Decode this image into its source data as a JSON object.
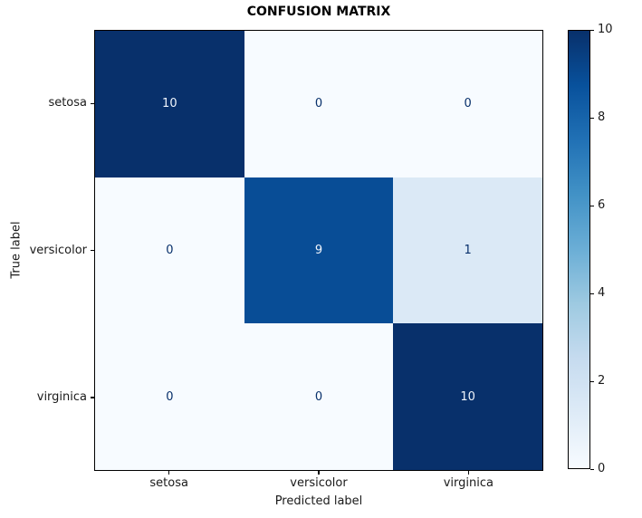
{
  "chart_data": {
    "type": "heatmap",
    "title": "CONFUSION MATRIX",
    "xlabel": "Predicted label",
    "ylabel": "True label",
    "x_categories": [
      "setosa",
      "versicolor",
      "virginica"
    ],
    "y_categories": [
      "setosa",
      "versicolor",
      "virginica"
    ],
    "matrix": [
      [
        10,
        0,
        0
      ],
      [
        0,
        9,
        1
      ],
      [
        0,
        0,
        10
      ]
    ],
    "colormap": "Blues",
    "vmin": 0,
    "vmax": 10,
    "colorbar_ticks": [
      0,
      2,
      4,
      6,
      8,
      10
    ],
    "colorbar_position": "right",
    "grid": false
  },
  "colors": {
    "value_fill": {
      "0": "#f7fbff",
      "1": "#dbe9f6",
      "9": "#084d96",
      "10": "#08306b"
    },
    "value_text": {
      "0": "#08306b",
      "1": "#08306b",
      "9": "#f0f5fc",
      "10": "#f0f5fc"
    },
    "colorbar_gradient_bottom_to_top": [
      "#f7fbff",
      "#deebf7",
      "#c6dbef",
      "#9ecae1",
      "#6baed6",
      "#4292c6",
      "#2171b5",
      "#08519c",
      "#08306b"
    ],
    "spine": "#000000",
    "text": "#1a1a1a"
  }
}
